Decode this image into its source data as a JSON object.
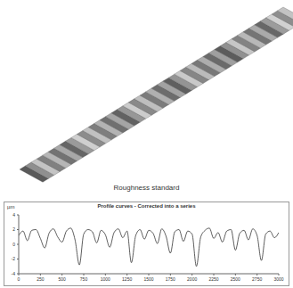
{
  "caption": "Roughness standard",
  "chart_data": {
    "type": "line",
    "title": "Profile curves - Corrected into a series",
    "y_label": "µm",
    "x": [
      0,
      50,
      100,
      150,
      200,
      250,
      300,
      350,
      400,
      450,
      500,
      550,
      600,
      650,
      700,
      750,
      800,
      850,
      900,
      950,
      1000,
      1050,
      1100,
      1150,
      1200,
      1250,
      1300,
      1350,
      1400,
      1450,
      1500,
      1550,
      1600,
      1650,
      1700,
      1750,
      1800,
      1850,
      1900,
      1950,
      2000,
      2050,
      2100,
      2150,
      2200,
      2250,
      2300,
      2350,
      2400,
      2450,
      2500,
      2550,
      2600,
      2650,
      2700,
      2750,
      2800,
      2850,
      2900,
      2950,
      3000
    ],
    "values": [
      1.2,
      1.8,
      0.5,
      1.9,
      2.0,
      0.8,
      -0.5,
      1.5,
      2.1,
      1.0,
      0.3,
      1.8,
      2.2,
      0.6,
      -2.8,
      1.4,
      2.0,
      1.7,
      0.2,
      1.9,
      1.3,
      -0.4,
      1.6,
      2.1,
      0.9,
      1.8,
      -2.5,
      1.2,
      2.0,
      0.7,
      1.9,
      1.5,
      0.1,
      2.1,
      1.1,
      -1.2,
      1.7,
      2.0,
      0.4,
      1.8,
      1.4,
      -3.0,
      1.0,
      1.9,
      2.2,
      0.8,
      1.6,
      0.3,
      1.8,
      2.0,
      -0.8,
      1.5,
      1.9,
      0.6,
      2.1,
      1.2,
      -2.2,
      1.4,
      1.8,
      0.9,
      1.6
    ],
    "color": "#333333",
    "xlim": [
      0,
      3000
    ],
    "xticks": [
      0,
      250,
      500,
      750,
      1000,
      1250,
      1500,
      1750,
      2000,
      2250,
      2500,
      2750,
      3000
    ],
    "ylim": [
      -4,
      4
    ],
    "yticks": [
      -4,
      -2,
      0,
      2,
      4
    ],
    "grid": false
  }
}
